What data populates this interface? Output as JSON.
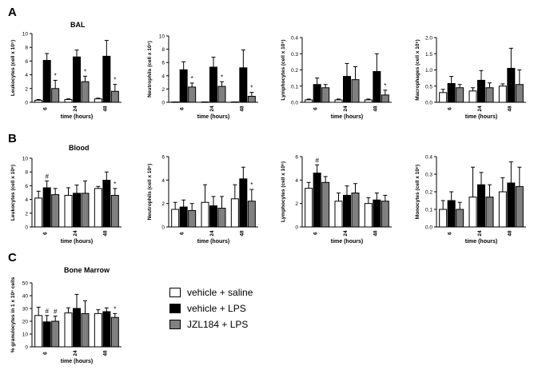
{
  "figure": {
    "panels": [
      {
        "letter": "A",
        "section_title": "BAL"
      },
      {
        "letter": "B",
        "section_title": "Blood"
      },
      {
        "letter": "C",
        "section_title": "Bone Marrow"
      }
    ],
    "legend": [
      {
        "label": "vehicle + saline",
        "color": "#ffffff"
      },
      {
        "label": "vehicle + LPS",
        "color": "#000000"
      },
      {
        "label": "JZL184 + LPS",
        "color": "#808080"
      }
    ]
  },
  "chart_data": [
    {
      "id": "bal-leuk",
      "type": "bar",
      "panel": "A",
      "section_title": "BAL",
      "ylabel": "Leukocytes (cell x 10⁵)",
      "xlabel": "time (hours)",
      "categories": [
        "6",
        "24",
        "48"
      ],
      "ylim": [
        0,
        10
      ],
      "yticks": [
        0,
        2,
        4,
        6,
        8,
        10
      ],
      "ytick_labels": [
        "0",
        "2",
        "4",
        "6",
        "8",
        "10"
      ],
      "series": [
        {
          "name": "vehicle + saline",
          "values": [
            0.3,
            0.4,
            0.5
          ],
          "errors": [
            0.1,
            0.1,
            0.1
          ]
        },
        {
          "name": "vehicle + LPS",
          "values": [
            6.1,
            6.6,
            6.7
          ],
          "errors": [
            1.0,
            1.0,
            2.3
          ]
        },
        {
          "name": "JZL184 + LPS",
          "values": [
            2.0,
            3.0,
            1.6
          ],
          "errors": [
            1.2,
            0.8,
            1.0
          ]
        }
      ],
      "annotations": [
        {
          "cat": 0,
          "series": 2,
          "text": "*"
        },
        {
          "cat": 1,
          "series": 2,
          "text": "*"
        },
        {
          "cat": 2,
          "series": 2,
          "text": "*"
        }
      ]
    },
    {
      "id": "bal-neut",
      "type": "bar",
      "panel": "A",
      "ylabel": "Neutrophils (cell x 10⁵)",
      "xlabel": "time (hours)",
      "categories": [
        "6",
        "24",
        "48"
      ],
      "ylim": [
        0,
        10
      ],
      "yticks": [
        0,
        2,
        4,
        6,
        8,
        10
      ],
      "ytick_labels": [
        "0",
        "2",
        "4",
        "6",
        "8",
        "10"
      ],
      "series": [
        {
          "name": "vehicle + saline",
          "values": [
            0.05,
            0.05,
            0.05
          ],
          "errors": [
            0,
            0,
            0
          ]
        },
        {
          "name": "vehicle + LPS",
          "values": [
            4.9,
            5.3,
            5.2
          ],
          "errors": [
            1.2,
            1.5,
            2.7
          ]
        },
        {
          "name": "JZL184 + LPS",
          "values": [
            2.3,
            2.4,
            0.9
          ],
          "errors": [
            0.6,
            0.7,
            0.6
          ]
        }
      ],
      "annotations": [
        {
          "cat": 0,
          "series": 2,
          "text": "*"
        },
        {
          "cat": 1,
          "series": 2,
          "text": "*"
        },
        {
          "cat": 2,
          "series": 2,
          "text": "*"
        }
      ]
    },
    {
      "id": "bal-lymph",
      "type": "bar",
      "panel": "A",
      "ylabel": "Lymphocytes (cell x 10⁵)",
      "xlabel": "time (hours)",
      "categories": [
        "6",
        "24",
        "48"
      ],
      "ylim": [
        0,
        0.4
      ],
      "yticks": [
        0,
        0.1,
        0.2,
        0.3,
        0.4
      ],
      "ytick_labels": [
        "0.0",
        "0.1",
        "0.2",
        "0.3",
        "0.4"
      ],
      "series": [
        {
          "name": "vehicle + saline",
          "values": [
            0.015,
            0.015,
            0.015
          ],
          "errors": [
            0.005,
            0.005,
            0.005
          ]
        },
        {
          "name": "vehicle + LPS",
          "values": [
            0.11,
            0.16,
            0.19
          ],
          "errors": [
            0.04,
            0.08,
            0.11
          ]
        },
        {
          "name": "JZL184 + LPS",
          "values": [
            0.09,
            0.14,
            0.045
          ],
          "errors": [
            0.02,
            0.08,
            0.03
          ]
        }
      ],
      "annotations": [
        {
          "cat": 2,
          "series": 2,
          "text": "*"
        }
      ]
    },
    {
      "id": "bal-macro",
      "type": "bar",
      "panel": "A",
      "ylabel": "Macrophages (cell x 10⁵)",
      "xlabel": "time (hours)",
      "categories": [
        "6",
        "24",
        "48"
      ],
      "ylim": [
        0,
        2
      ],
      "yticks": [
        0,
        0.5,
        1,
        1.5,
        2
      ],
      "ytick_labels": [
        "0.0",
        "0.5",
        "1.0",
        "1.5",
        "2.0"
      ],
      "series": [
        {
          "name": "vehicle + saline",
          "values": [
            0.3,
            0.35,
            0.5
          ],
          "errors": [
            0.1,
            0.1,
            0.07
          ]
        },
        {
          "name": "vehicle + LPS",
          "values": [
            0.58,
            0.68,
            1.05
          ],
          "errors": [
            0.22,
            0.3,
            0.62
          ]
        },
        {
          "name": "JZL184 + LPS",
          "values": [
            0.45,
            0.45,
            0.55
          ],
          "errors": [
            0.1,
            0.15,
            0.45
          ]
        }
      ],
      "annotations": []
    },
    {
      "id": "blood-leuk",
      "type": "bar",
      "panel": "B",
      "section_title": "Blood",
      "ylabel": "Leukocytes (cell x 10⁶)",
      "xlabel": "time (hours)",
      "categories": [
        "6",
        "24",
        "48"
      ],
      "ylim": [
        0,
        10
      ],
      "yticks": [
        0,
        2,
        4,
        6,
        8,
        10
      ],
      "ytick_labels": [
        "0",
        "2",
        "4",
        "6",
        "8",
        "10"
      ],
      "series": [
        {
          "name": "vehicle + saline",
          "values": [
            4.2,
            4.6,
            5.6
          ],
          "errors": [
            1.0,
            1.1,
            0.3
          ]
        },
        {
          "name": "vehicle + LPS",
          "values": [
            5.7,
            4.9,
            6.8
          ],
          "errors": [
            1.0,
            1.2,
            1.2
          ]
        },
        {
          "name": "JZL184 + LPS",
          "values": [
            4.7,
            4.9,
            4.6
          ],
          "errors": [
            0.9,
            1.8,
            1.0
          ]
        }
      ],
      "annotations": [
        {
          "cat": 0,
          "series": 1,
          "text": "#"
        },
        {
          "cat": 2,
          "series": 2,
          "text": "*"
        }
      ]
    },
    {
      "id": "blood-neut",
      "type": "bar",
      "panel": "B",
      "ylabel": "Neutrophils (cell x 10⁶)",
      "xlabel": "time (hours)",
      "categories": [
        "6",
        "24",
        "48"
      ],
      "ylim": [
        0,
        6
      ],
      "yticks": [
        0,
        2,
        4,
        6
      ],
      "ytick_labels": [
        "0",
        "2",
        "4",
        "6"
      ],
      "series": [
        {
          "name": "vehicle + saline",
          "values": [
            1.5,
            2.1,
            2.4
          ],
          "errors": [
            0.6,
            1.5,
            1.2
          ]
        },
        {
          "name": "vehicle + LPS",
          "values": [
            1.7,
            1.8,
            4.1
          ],
          "errors": [
            0.6,
            0.8,
            1.0
          ]
        },
        {
          "name": "JZL184 + LPS",
          "values": [
            1.4,
            1.6,
            2.2
          ],
          "errors": [
            0.6,
            1.0,
            1.0
          ]
        }
      ],
      "annotations": [
        {
          "cat": 2,
          "series": 2,
          "text": "*"
        }
      ]
    },
    {
      "id": "blood-lymph",
      "type": "bar",
      "panel": "B",
      "ylabel": "Lymphocytes (cell x 10⁶)",
      "xlabel": "time (hours)",
      "categories": [
        "6",
        "24",
        "48"
      ],
      "ylim": [
        0,
        6
      ],
      "yticks": [
        0,
        2,
        4,
        6
      ],
      "ytick_labels": [
        "0",
        "2",
        "4",
        "6"
      ],
      "series": [
        {
          "name": "vehicle + saline",
          "values": [
            3.3,
            2.2,
            2.0
          ],
          "errors": [
            0.5,
            0.7,
            0.5
          ]
        },
        {
          "name": "vehicle + LPS",
          "values": [
            4.6,
            2.7,
            2.3
          ],
          "errors": [
            0.7,
            0.8,
            0.6
          ]
        },
        {
          "name": "JZL184 + LPS",
          "values": [
            3.8,
            2.9,
            2.2
          ],
          "errors": [
            0.5,
            0.8,
            0.5
          ]
        }
      ],
      "annotations": [
        {
          "cat": 0,
          "series": 1,
          "text": "#"
        }
      ]
    },
    {
      "id": "blood-mono",
      "type": "bar",
      "panel": "B",
      "ylabel": "Monocytes (cell x 10⁶)",
      "xlabel": "time (hours)",
      "categories": [
        "6",
        "24",
        "48"
      ],
      "ylim": [
        0,
        0.4
      ],
      "yticks": [
        0,
        0.1,
        0.2,
        0.3,
        0.4
      ],
      "ytick_labels": [
        "0.0",
        "0.1",
        "0.2",
        "0.3",
        "0.4"
      ],
      "series": [
        {
          "name": "vehicle + saline",
          "values": [
            0.1,
            0.17,
            0.2
          ],
          "errors": [
            0.05,
            0.17,
            0.08
          ]
        },
        {
          "name": "vehicle + LPS",
          "values": [
            0.15,
            0.24,
            0.25
          ],
          "errors": [
            0.05,
            0.07,
            0.12
          ]
        },
        {
          "name": "JZL184 + LPS",
          "values": [
            0.1,
            0.17,
            0.23
          ],
          "errors": [
            0.04,
            0.07,
            0.11
          ]
        }
      ],
      "annotations": []
    },
    {
      "id": "bm-gran",
      "type": "bar",
      "panel": "C",
      "section_title": "Bone Marrow",
      "ylabel": "% granulocytes in 1 x 10⁶ cells",
      "xlabel": "time (hours)",
      "categories": [
        "6",
        "24",
        "48"
      ],
      "ylim": [
        0,
        50
      ],
      "yticks": [
        0,
        10,
        20,
        30,
        40,
        50
      ],
      "ytick_labels": [
        "0",
        "10",
        "20",
        "30",
        "40",
        "50"
      ],
      "series": [
        {
          "name": "vehicle + saline",
          "values": [
            24.5,
            26.5,
            26
          ],
          "errors": [
            6.5,
            4,
            3
          ]
        },
        {
          "name": "vehicle + LPS",
          "values": [
            19.5,
            30,
            27.5
          ],
          "errors": [
            5,
            11,
            3
          ]
        },
        {
          "name": "JZL184 + LPS",
          "values": [
            20,
            26,
            23
          ],
          "errors": [
            4,
            10,
            3
          ]
        }
      ],
      "annotations": [
        {
          "cat": 0,
          "series": 1,
          "text": "#"
        },
        {
          "cat": 0,
          "series": 2,
          "text": "#"
        },
        {
          "cat": 2,
          "series": 2,
          "text": "*"
        }
      ]
    }
  ]
}
